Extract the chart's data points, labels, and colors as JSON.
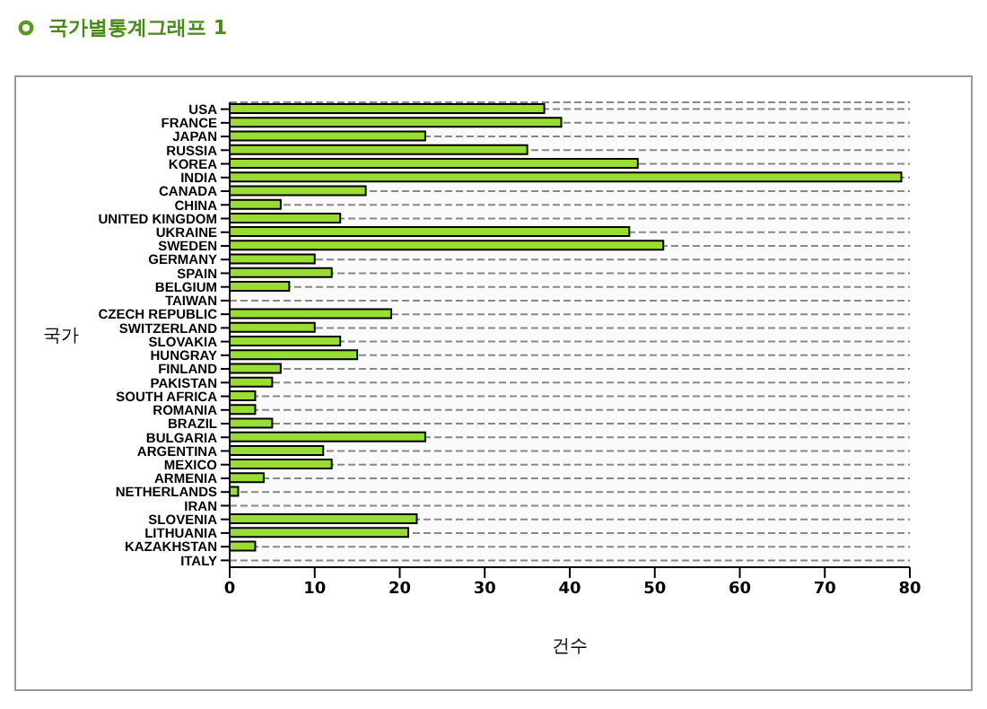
{
  "chart_data": {
    "type": "bar",
    "orientation": "horizontal",
    "title": "국가별통계그래프 1",
    "xlabel": "건수",
    "ylabel": "국가",
    "categories": [
      "USA",
      "FRANCE",
      "JAPAN",
      "RUSSIA",
      "KOREA",
      "INDIA",
      "CANADA",
      "CHINA",
      "UNITED KINGDOM",
      "UKRAINE",
      "SWEDEN",
      "GERMANY",
      "SPAIN",
      "BELGIUM",
      "TAIWAN",
      "CZECH REPUBLIC",
      "SWITZERLAND",
      "SLOVAKIA",
      "HUNGRAY",
      "FINLAND",
      "PAKISTAN",
      "SOUTH AFRICA",
      "ROMANIA",
      "BRAZIL",
      "BULGARIA",
      "ARGENTINA",
      "MEXICO",
      "ARMENIA",
      "NETHERLANDS",
      "IRAN",
      "SLOVENIA",
      "LITHUANIA",
      "KAZAKHSTAN",
      "ITALY"
    ],
    "values": [
      37,
      39,
      23,
      35,
      48,
      79,
      16,
      6,
      13,
      47,
      51,
      10,
      12,
      7,
      0,
      19,
      10,
      13,
      15,
      6,
      5,
      3,
      3,
      5,
      23,
      11,
      12,
      4,
      1,
      0,
      22,
      21,
      3,
      0
    ],
    "color": "#99dd33",
    "xlim": [
      0,
      80
    ],
    "xticks": [
      0,
      10,
      20,
      30,
      40,
      50,
      60,
      70,
      80
    ],
    "grid": "y",
    "legend": false
  }
}
